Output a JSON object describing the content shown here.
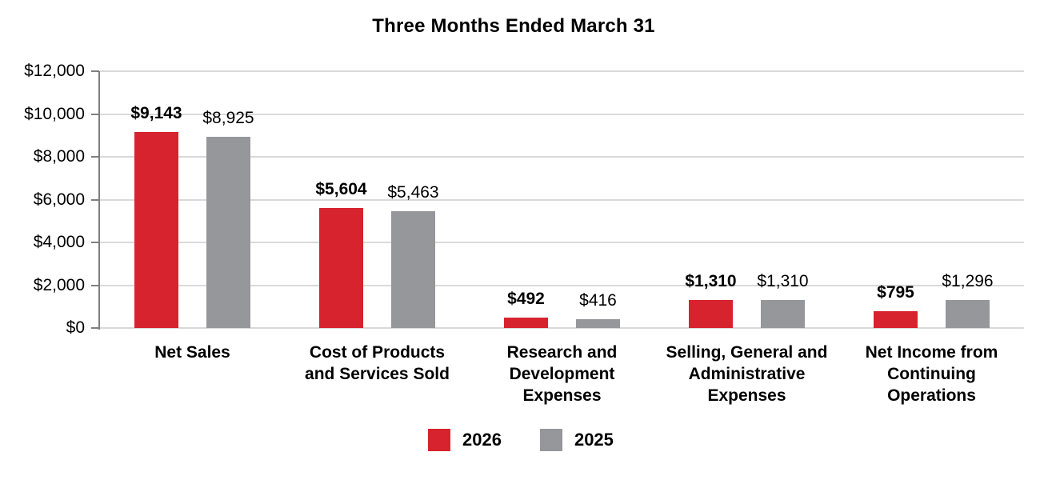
{
  "chart_data": {
    "type": "bar",
    "title": "Three Months Ended March 31",
    "grid": true,
    "legend_position": "bottom",
    "categories": [
      "Net Sales",
      "Cost of Products and Services Sold",
      "Research and Development Expenses",
      "Selling, General and Administrative Expenses",
      "Net Income from Continuing Operations"
    ],
    "category_label_lines": [
      [
        "Net Sales"
      ],
      [
        "Cost of Products",
        "and Services Sold"
      ],
      [
        "Research and",
        "Development",
        "Expenses"
      ],
      [
        "Selling, General and",
        "Administrative",
        "Expenses"
      ],
      [
        "Net Income from",
        "Continuing",
        "Operations"
      ]
    ],
    "series": [
      {
        "name": "2026",
        "color": "#d7232e",
        "values": [
          9143,
          5604,
          492,
          1310,
          795
        ],
        "value_labels": [
          "$9,143",
          "$5,604",
          "$492",
          "$1,310",
          "$795"
        ],
        "label_bold": true
      },
      {
        "name": "2025",
        "color": "#96979b",
        "values": [
          8925,
          5463,
          416,
          1310,
          1296
        ],
        "value_labels": [
          "$8,925",
          "$5,463",
          "$416",
          "$1,310",
          "$1,296"
        ],
        "label_bold": false
      }
    ],
    "y_axis": {
      "min": 0,
      "max": 12000,
      "tick_interval": 2000,
      "ticks": [
        {
          "value": 0,
          "label": "$0"
        },
        {
          "value": 2000,
          "label": "$2,000"
        },
        {
          "value": 4000,
          "label": "$4,000"
        },
        {
          "value": 6000,
          "label": "$6,000"
        },
        {
          "value": 8000,
          "label": "$8,000"
        },
        {
          "value": 10000,
          "label": "$10,000"
        },
        {
          "value": 12000,
          "label": "$12,000"
        }
      ]
    },
    "colors": {
      "gridline": "#d9d9d9",
      "axis": "#7f7f7f",
      "text": "#000000",
      "background": "#ffffff"
    }
  }
}
